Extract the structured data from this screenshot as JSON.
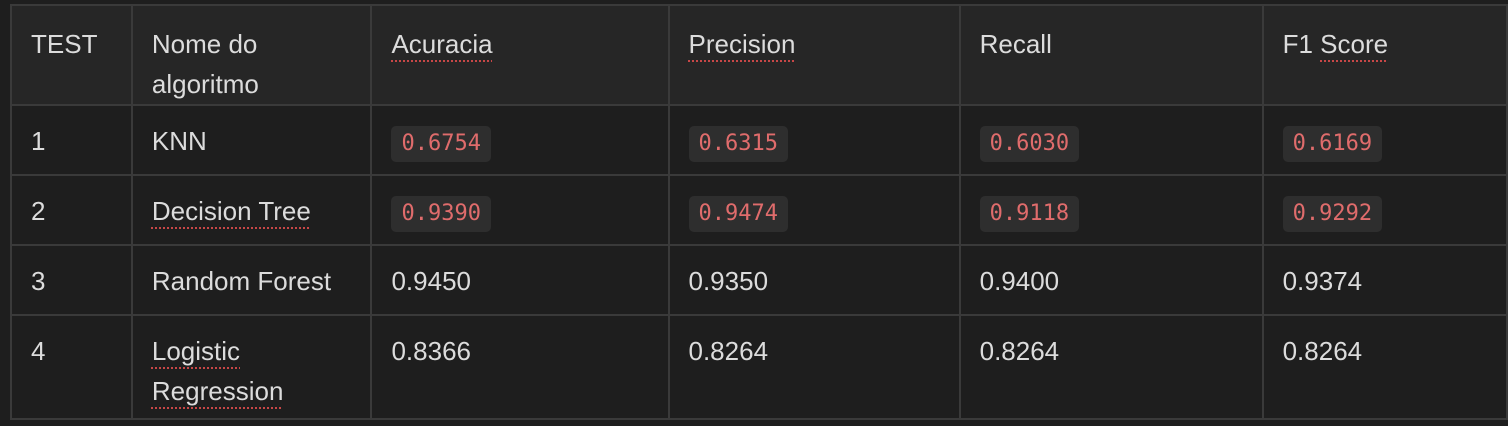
{
  "headers": [
    "TEST",
    "Nome do algoritmo",
    "Acuracia",
    "Precision",
    "Recall",
    "F1 Score"
  ],
  "rows": [
    {
      "test": "1",
      "algorithm": "KNN",
      "acuracia": "0.6754",
      "precision": "0.6315",
      "recall": "0.6030",
      "f1": "0.6169"
    },
    {
      "test": "2",
      "algorithm": "Decision Tree",
      "acuracia": "0.9390",
      "precision": "0.9474",
      "recall": "0.9118",
      "f1": "0.9292"
    },
    {
      "test": "3",
      "algorithm": "Random Forest",
      "acuracia": "0.9450",
      "precision": "0.9350",
      "recall": "0.9400",
      "f1": "0.9374"
    },
    {
      "test": "4",
      "algorithm": "Logistic Regression",
      "acuracia": "0.8366",
      "precision": "0.8264",
      "recall": "0.8264",
      "f1": "0.8264"
    }
  ],
  "colors": {
    "background": "#1e1e1e",
    "header_background": "#262626",
    "border": "#3a3a3a",
    "text": "#dcdcdc",
    "code_text": "#e06c6c",
    "code_background": "#2e2e2e",
    "spellcheck_underline": "#c74747"
  }
}
